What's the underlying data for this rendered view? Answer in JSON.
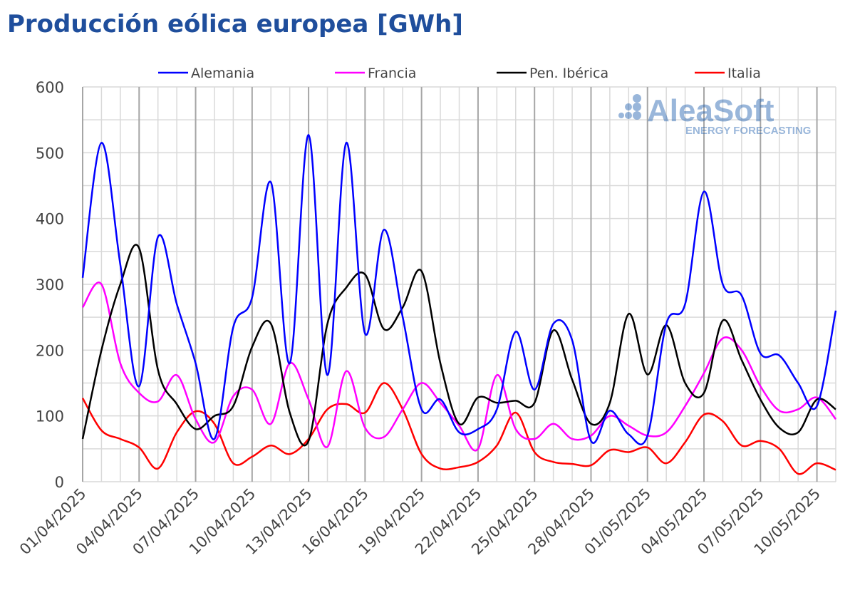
{
  "chart_data": {
    "type": "line",
    "title": "Producción eólica europea [GWh]",
    "xlabel": "",
    "ylabel": "",
    "ylim": [
      0,
      600
    ],
    "yticks": [
      0,
      100,
      200,
      300,
      400,
      500,
      600
    ],
    "grid": true,
    "legend_position": "top",
    "start_date": "01/04/2025",
    "x_tick_labels": [
      "01/04/2025",
      "04/04/2025",
      "07/04/2025",
      "10/04/2025",
      "13/04/2025",
      "16/04/2025",
      "19/04/2025",
      "22/04/2025",
      "25/04/2025",
      "28/04/2025",
      "01/05/2025",
      "04/05/2025",
      "07/05/2025",
      "10/05/2025"
    ],
    "watermark": {
      "brand": "AleaSoft",
      "tagline": "ENERGY FORECASTING"
    },
    "series": [
      {
        "name": "Alemania",
        "color": "#0000ff",
        "values": [
          310,
          515,
          330,
          145,
          372,
          270,
          180,
          65,
          235,
          280,
          455,
          180,
          527,
          162,
          515,
          225,
          383,
          250,
          110,
          125,
          75,
          80,
          110,
          228,
          140,
          240,
          215,
          62,
          108,
          72,
          70,
          240,
          270,
          441,
          300,
          283,
          195,
          192,
          150,
          115,
          260
        ]
      },
      {
        "name": "Francia",
        "color": "#ff00ff",
        "values": [
          265,
          300,
          180,
          135,
          122,
          162,
          95,
          60,
          130,
          140,
          88,
          180,
          125,
          53,
          168,
          82,
          68,
          110,
          150,
          120,
          85,
          50,
          162,
          80,
          65,
          88,
          65,
          70,
          100,
          85,
          70,
          75,
          115,
          165,
          218,
          200,
          145,
          108,
          110,
          128,
          95
        ]
      },
      {
        "name": "Pen. Ibérica",
        "color": "#000000",
        "values": [
          65,
          200,
          300,
          355,
          170,
          118,
          80,
          100,
          115,
          205,
          240,
          105,
          62,
          240,
          295,
          315,
          232,
          265,
          320,
          180,
          88,
          128,
          120,
          123,
          120,
          230,
          155,
          88,
          120,
          255,
          163,
          238,
          150,
          135,
          245,
          185,
          125,
          82,
          75,
          125,
          110
        ]
      },
      {
        "name": "Italia",
        "color": "#ff0000",
        "values": [
          127,
          78,
          65,
          52,
          20,
          75,
          107,
          88,
          28,
          38,
          55,
          42,
          65,
          110,
          118,
          105,
          150,
          110,
          42,
          20,
          22,
          30,
          55,
          105,
          45,
          30,
          27,
          25,
          48,
          45,
          52,
          28,
          60,
          102,
          92,
          55,
          62,
          50,
          12,
          28,
          18
        ]
      }
    ]
  }
}
